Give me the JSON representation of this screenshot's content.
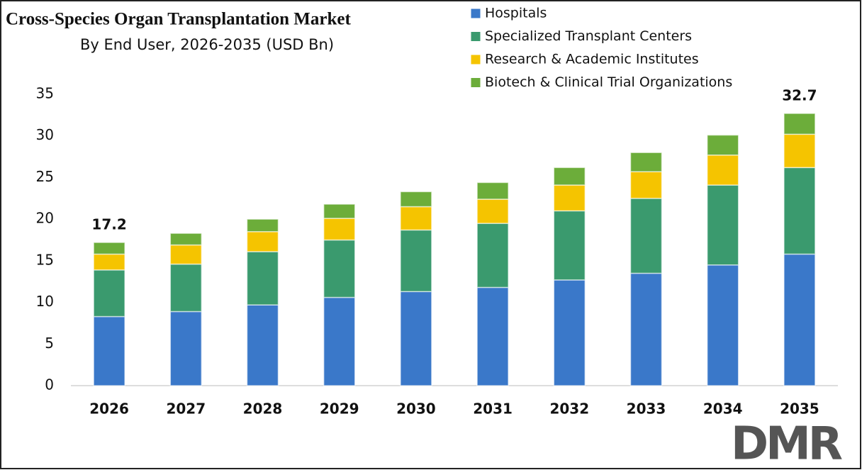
{
  "chart_data": {
    "type": "stacked-bar",
    "title": "Cross-Species Organ Transplantation Market",
    "subtitle": "By End User, 2026-2035 (USD Bn)",
    "categories": [
      "2026",
      "2027",
      "2028",
      "2029",
      "2030",
      "2031",
      "2032",
      "2033",
      "2034",
      "2035"
    ],
    "series": [
      {
        "name": "Hospitals",
        "color": "#3a78c9",
        "values": [
          8.3,
          8.9,
          9.7,
          10.6,
          11.3,
          11.8,
          12.7,
          13.5,
          14.5,
          15.8
        ]
      },
      {
        "name": "Specialized Transplant Centers",
        "color": "#3a9a6e",
        "values": [
          5.6,
          5.7,
          6.4,
          6.9,
          7.4,
          7.7,
          8.3,
          9.0,
          9.6,
          10.4
        ]
      },
      {
        "name": "Research & Academic Institutes",
        "color": "#f5c400",
        "values": [
          1.9,
          2.3,
          2.4,
          2.6,
          2.8,
          2.9,
          3.1,
          3.2,
          3.6,
          4.0
        ]
      },
      {
        "name": "Biotech & Clinical Trial Organizations",
        "color": "#6cad3a",
        "values": [
          1.4,
          1.4,
          1.5,
          1.7,
          1.8,
          2.0,
          2.1,
          2.3,
          2.4,
          2.5
        ]
      }
    ],
    "total_labels": [
      {
        "index": 0,
        "value": 17.2
      },
      {
        "index": 9,
        "value": 32.7
      }
    ],
    "ylim": [
      0,
      35
    ],
    "yticks": [
      0,
      5,
      10,
      15,
      20,
      25,
      30,
      35
    ],
    "logo": "DMR"
  }
}
